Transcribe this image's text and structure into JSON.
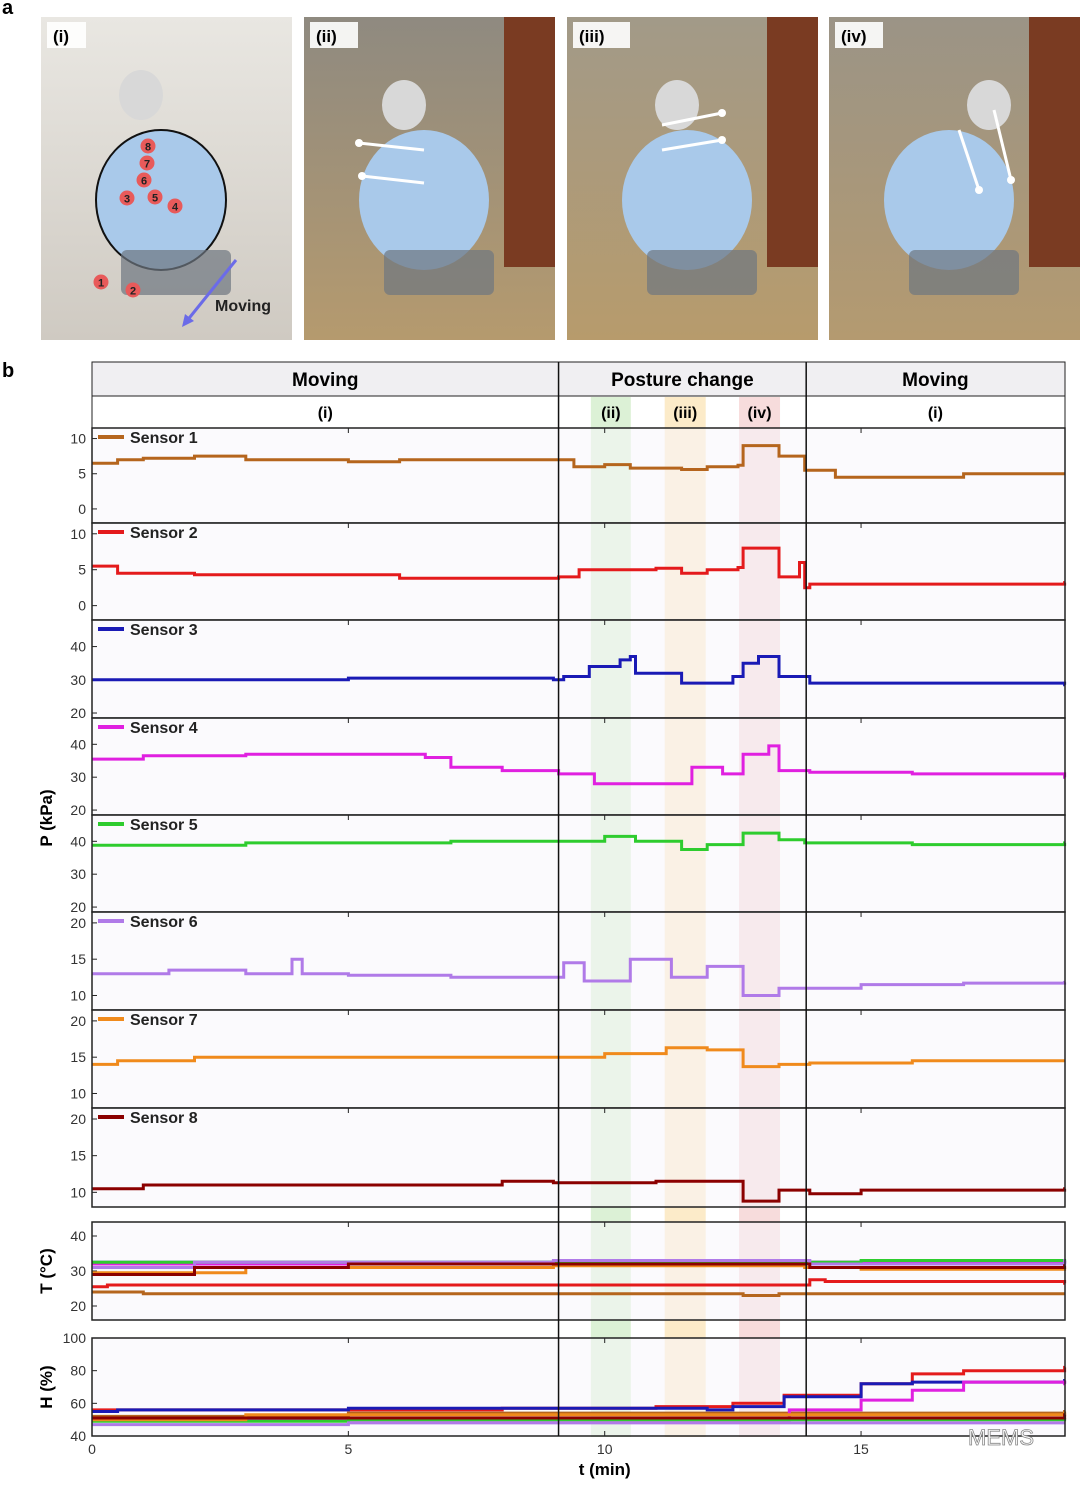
{
  "panel_letters": [
    "a",
    "b"
  ],
  "photos": [
    {
      "label": "(i)",
      "annotation": "Moving",
      "sensor_markers": [
        "1",
        "2",
        "3",
        "4",
        "5",
        "6",
        "7",
        "8"
      ]
    },
    {
      "label": "(ii)"
    },
    {
      "label": "(iii)"
    },
    {
      "label": "(iv)"
    }
  ],
  "watermark": "MEMS",
  "colors": {
    "sensor": [
      "#b5651d",
      "#e41a1c",
      "#1a1ab5",
      "#e020e0",
      "#2ecc2e",
      "#b07ae8",
      "#f08a1c",
      "#8b0000"
    ],
    "band_ii": "#d6efcf",
    "band_iii": "#fbe8c0",
    "band_iv": "#f6d6d6",
    "panel_bg": "#f7f6fb"
  },
  "chart_data": {
    "type": "line",
    "xlabel": "t (min)",
    "xlim": [
      0,
      18.97
    ],
    "xticks": [
      0,
      5,
      10,
      15
    ],
    "phases": [
      {
        "label": "Moving",
        "sub": "(i)",
        "range": [
          0,
          9.1
        ]
      },
      {
        "label": "Posture change",
        "sub": "",
        "range": [
          9.1,
          13.93
        ]
      },
      {
        "label": "Moving",
        "sub": "(i)",
        "range": [
          13.93,
          18.97
        ]
      }
    ],
    "bands": [
      {
        "label": "(ii)",
        "range": [
          9.73,
          10.51
        ]
      },
      {
        "label": "(iii)",
        "range": [
          11.17,
          11.97
        ]
      },
      {
        "label": "(iv)",
        "range": [
          12.62,
          13.42
        ]
      }
    ],
    "pressure_ylabel": "P (kPa)",
    "pressure": [
      {
        "name": "Sensor 1",
        "ylim": [
          -2,
          11.5
        ],
        "yticks": [
          0,
          5,
          10
        ],
        "points": [
          [
            0,
            6.5
          ],
          [
            0.5,
            7
          ],
          [
            1,
            7.2
          ],
          [
            2,
            7.5
          ],
          [
            3,
            7
          ],
          [
            5,
            6.7
          ],
          [
            6,
            7
          ],
          [
            9.1,
            7
          ],
          [
            9.4,
            6
          ],
          [
            10,
            6.3
          ],
          [
            10.5,
            5.8
          ],
          [
            11.5,
            5.6
          ],
          [
            12,
            6
          ],
          [
            12.6,
            6.2
          ],
          [
            12.7,
            9
          ],
          [
            13.4,
            7.5
          ],
          [
            13.9,
            5.5
          ],
          [
            14.5,
            4.5
          ],
          [
            16,
            4.5
          ],
          [
            17,
            5
          ],
          [
            18.97,
            5
          ]
        ]
      },
      {
        "name": "Sensor 2",
        "ylim": [
          -2,
          11.5
        ],
        "yticks": [
          0,
          5,
          10
        ],
        "points": [
          [
            0,
            5.5
          ],
          [
            0.5,
            4.5
          ],
          [
            2,
            4.3
          ],
          [
            5,
            4.3
          ],
          [
            6,
            3.8
          ],
          [
            9.1,
            4
          ],
          [
            9.5,
            5
          ],
          [
            11,
            5.2
          ],
          [
            11.5,
            4.5
          ],
          [
            12,
            5
          ],
          [
            12.6,
            5.3
          ],
          [
            12.7,
            8
          ],
          [
            13.4,
            4
          ],
          [
            13.8,
            6
          ],
          [
            13.9,
            2.5
          ],
          [
            14,
            3
          ],
          [
            18.97,
            3.2
          ]
        ]
      },
      {
        "name": "Sensor 3",
        "ylim": [
          18.5,
          48
        ],
        "yticks": [
          20,
          30,
          40
        ],
        "points": [
          [
            0,
            30
          ],
          [
            5,
            30.5
          ],
          [
            9,
            30
          ],
          [
            9.2,
            31
          ],
          [
            9.7,
            34
          ],
          [
            10.3,
            36
          ],
          [
            10.5,
            37
          ],
          [
            10.6,
            32
          ],
          [
            11.5,
            29
          ],
          [
            12,
            29
          ],
          [
            12.5,
            31
          ],
          [
            12.7,
            35
          ],
          [
            13,
            37
          ],
          [
            13.4,
            31
          ],
          [
            14,
            29
          ],
          [
            18.97,
            28.5
          ]
        ]
      },
      {
        "name": "Sensor 4",
        "ylim": [
          18.5,
          48
        ],
        "yticks": [
          20,
          30,
          40
        ],
        "points": [
          [
            0,
            35.5
          ],
          [
            1,
            36.5
          ],
          [
            3,
            37
          ],
          [
            6.5,
            36
          ],
          [
            7,
            33
          ],
          [
            8,
            32
          ],
          [
            9.1,
            31
          ],
          [
            9.8,
            28
          ],
          [
            11.5,
            28
          ],
          [
            11.7,
            33
          ],
          [
            12.3,
            31
          ],
          [
            12.7,
            37
          ],
          [
            13.2,
            39.5
          ],
          [
            13.4,
            32
          ],
          [
            14,
            31.5
          ],
          [
            16,
            31
          ],
          [
            18.97,
            30
          ]
        ]
      },
      {
        "name": "Sensor 5",
        "ylim": [
          18.5,
          48
        ],
        "yticks": [
          20,
          30,
          40
        ],
        "points": [
          [
            0,
            38.8
          ],
          [
            3,
            39.5
          ],
          [
            7,
            40
          ],
          [
            9,
            40
          ],
          [
            10,
            41.5
          ],
          [
            10.6,
            40
          ],
          [
            11.5,
            37.5
          ],
          [
            12,
            39
          ],
          [
            12.7,
            42.5
          ],
          [
            13.4,
            40.5
          ],
          [
            13.9,
            39.5
          ],
          [
            16,
            39
          ],
          [
            18.97,
            39.5
          ]
        ]
      },
      {
        "name": "Sensor 6",
        "ylim": [
          8,
          21.5
        ],
        "yticks": [
          10,
          15,
          20
        ],
        "points": [
          [
            0,
            13
          ],
          [
            1.5,
            13.5
          ],
          [
            3,
            13
          ],
          [
            3.9,
            15
          ],
          [
            4.1,
            13
          ],
          [
            5,
            12.8
          ],
          [
            7,
            12.5
          ],
          [
            9,
            12.5
          ],
          [
            9.2,
            14.5
          ],
          [
            9.6,
            12
          ],
          [
            10.5,
            15
          ],
          [
            11.3,
            12.5
          ],
          [
            12,
            14
          ],
          [
            12.7,
            10
          ],
          [
            13.4,
            11
          ],
          [
            14,
            11
          ],
          [
            15,
            11.5
          ],
          [
            17,
            11.7
          ],
          [
            18.97,
            11.8
          ]
        ]
      },
      {
        "name": "Sensor 7",
        "ylim": [
          8,
          21.5
        ],
        "yticks": [
          10,
          15,
          20
        ],
        "points": [
          [
            0,
            14
          ],
          [
            0.5,
            14.5
          ],
          [
            2,
            15
          ],
          [
            5,
            15
          ],
          [
            9,
            15
          ],
          [
            10,
            15.5
          ],
          [
            11.2,
            16.3
          ],
          [
            12,
            16
          ],
          [
            12.7,
            13.7
          ],
          [
            13.4,
            14
          ],
          [
            14,
            14.2
          ],
          [
            16,
            14.5
          ],
          [
            18.97,
            14.5
          ]
        ]
      },
      {
        "name": "Sensor 8",
        "ylim": [
          8,
          21.5
        ],
        "yticks": [
          10,
          15,
          20
        ],
        "points": [
          [
            0,
            10.5
          ],
          [
            1,
            11
          ],
          [
            4,
            11
          ],
          [
            8,
            11.5
          ],
          [
            9,
            11.3
          ],
          [
            11,
            11.5
          ],
          [
            12.7,
            8.8
          ],
          [
            13.4,
            10.3
          ],
          [
            14,
            9.8
          ],
          [
            15,
            10.3
          ],
          [
            18.97,
            10.5
          ]
        ]
      }
    ],
    "temperature": {
      "ylabel": "T (°C)",
      "ylim": [
        16,
        44
      ],
      "yticks": [
        20,
        30,
        40
      ],
      "series": [
        {
          "name": "Sensor 1",
          "points": [
            [
              0,
              24
            ],
            [
              1,
              23.5
            ],
            [
              12.7,
              23
            ],
            [
              13.4,
              23.5
            ],
            [
              18.97,
              23.5
            ]
          ]
        },
        {
          "name": "Sensor 2",
          "points": [
            [
              0,
              25.5
            ],
            [
              0.3,
              26
            ],
            [
              13.9,
              26
            ],
            [
              14,
              27.5
            ],
            [
              14.3,
              27
            ],
            [
              18.97,
              26.5
            ]
          ]
        },
        {
          "name": "Sensor 3",
          "points": [
            [
              0,
              32.5
            ],
            [
              13.9,
              32.5
            ],
            [
              18.97,
              33
            ]
          ]
        },
        {
          "name": "Sensor 4",
          "points": [
            [
              0,
              32
            ],
            [
              9,
              32.5
            ],
            [
              18.97,
              33
            ]
          ]
        },
        {
          "name": "Sensor 5",
          "points": [
            [
              0,
              32.5
            ],
            [
              13.9,
              32.5
            ],
            [
              15,
              33
            ],
            [
              18.97,
              32.5
            ]
          ]
        },
        {
          "name": "Sensor 6",
          "points": [
            [
              0,
              31
            ],
            [
              2,
              32.5
            ],
            [
              9,
              33
            ],
            [
              14,
              32
            ],
            [
              18.97,
              33
            ]
          ]
        },
        {
          "name": "Sensor 7",
          "points": [
            [
              0,
              29.5
            ],
            [
              3,
              31
            ],
            [
              9,
              31.5
            ],
            [
              13.9,
              31
            ],
            [
              15,
              30.5
            ],
            [
              18.97,
              31
            ]
          ]
        },
        {
          "name": "Sensor 8",
          "points": [
            [
              0,
              29
            ],
            [
              2,
              31
            ],
            [
              5,
              32
            ],
            [
              9,
              32
            ],
            [
              14,
              31
            ],
            [
              18.97,
              31.5
            ]
          ]
        }
      ]
    },
    "humidity": {
      "ylabel": "H (%)",
      "ylim": [
        40,
        100
      ],
      "yticks": [
        40,
        60,
        80,
        100
      ],
      "series": [
        {
          "name": "Sensor 1",
          "points": [
            [
              0,
              52
            ],
            [
              5,
              54
            ],
            [
              18.97,
              55
            ]
          ]
        },
        {
          "name": "Sensor 2",
          "points": [
            [
              0,
              56
            ],
            [
              8,
              57
            ],
            [
              11,
              58
            ],
            [
              12.5,
              60
            ],
            [
              13.5,
              65
            ],
            [
              15,
              72
            ],
            [
              16,
              78
            ],
            [
              17,
              80
            ],
            [
              18.97,
              82
            ]
          ]
        },
        {
          "name": "Sensor 3",
          "points": [
            [
              0,
              55
            ],
            [
              0.5,
              56
            ],
            [
              5,
              57
            ],
            [
              12,
              56
            ],
            [
              12.5,
              58
            ],
            [
              13.5,
              64
            ],
            [
              15,
              72
            ],
            [
              16,
              73
            ],
            [
              18.97,
              74
            ]
          ]
        },
        {
          "name": "Sensor 4",
          "points": [
            [
              0,
              50
            ],
            [
              13.4,
              50
            ],
            [
              13.6,
              56
            ],
            [
              15,
              62
            ],
            [
              16,
              68
            ],
            [
              17,
              73
            ],
            [
              18.97,
              72
            ]
          ]
        },
        {
          "name": "Sensor 5",
          "points": [
            [
              0,
              49
            ],
            [
              5,
              50
            ],
            [
              18.97,
              51
            ]
          ]
        },
        {
          "name": "Sensor 6",
          "points": [
            [
              0,
              47
            ],
            [
              5,
              48
            ],
            [
              18.97,
              48
            ]
          ]
        },
        {
          "name": "Sensor 7",
          "points": [
            [
              0,
              50
            ],
            [
              3,
              53
            ],
            [
              18.97,
              54
            ]
          ]
        },
        {
          "name": "Sensor 8",
          "points": [
            [
              0,
              51
            ],
            [
              18.97,
              53
            ]
          ]
        }
      ]
    }
  }
}
